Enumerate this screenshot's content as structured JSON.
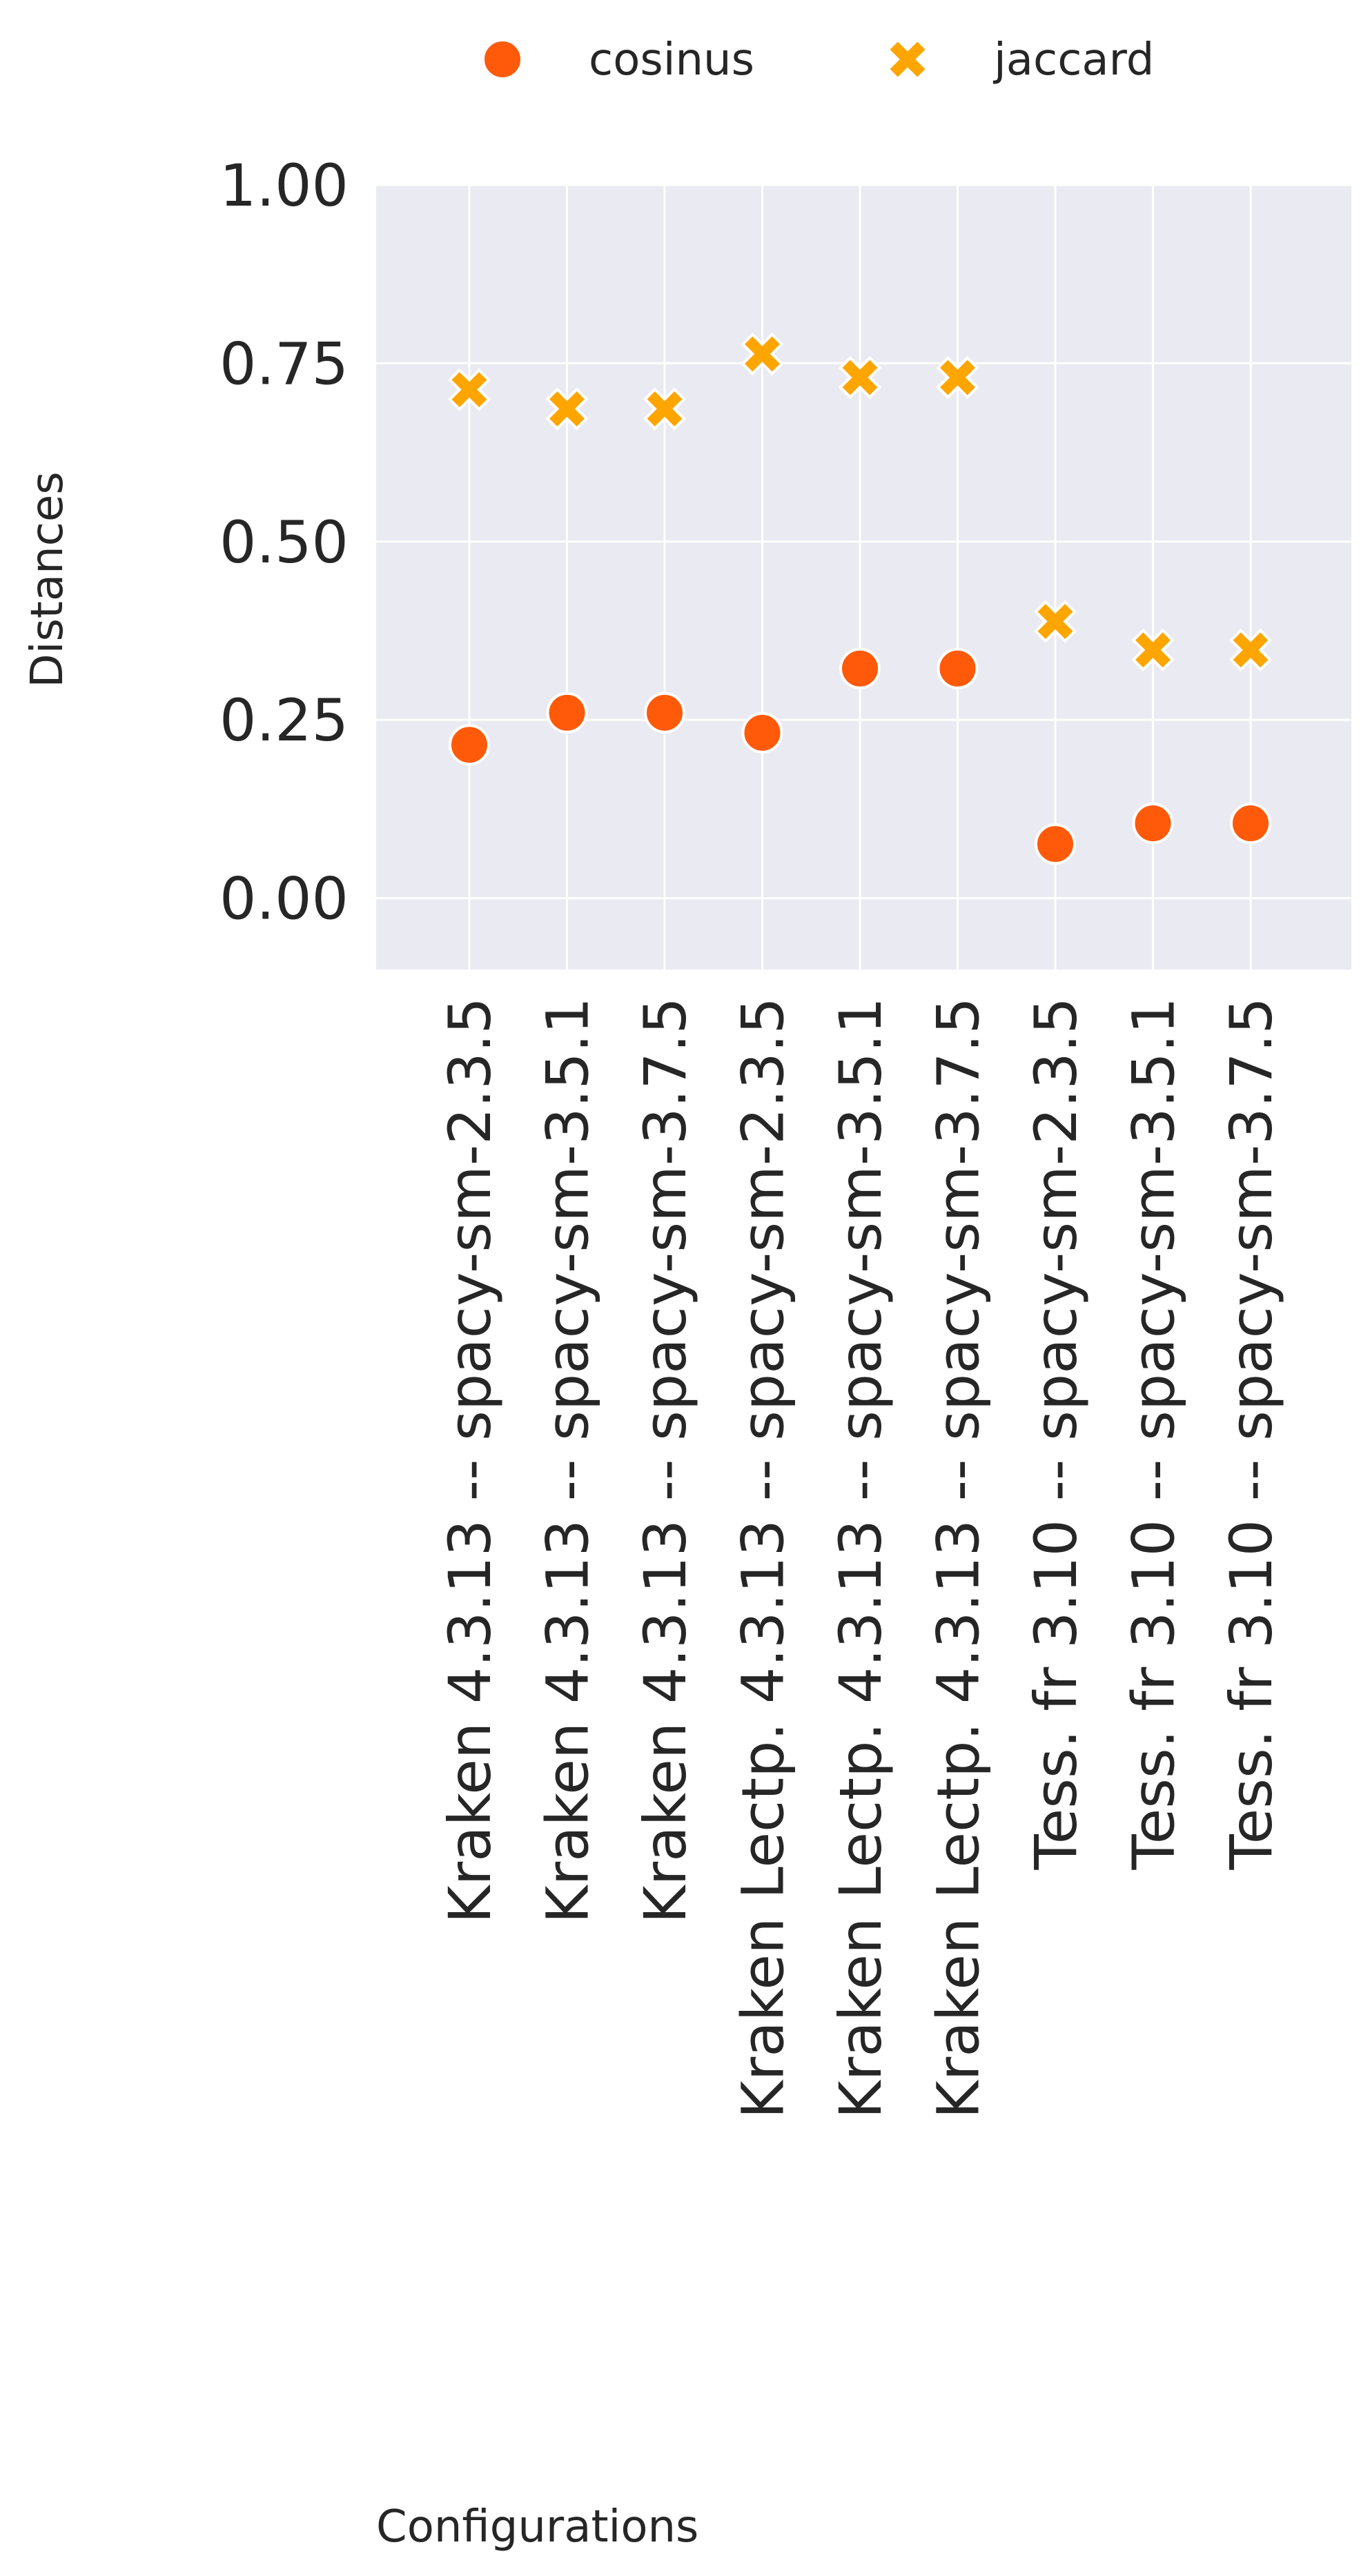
{
  "chart_data": {
    "type": "scatter",
    "title": "",
    "xlabel": "Configurations",
    "ylabel": "Distances",
    "categories": [
      "Kraken 4.3.13 -- spacy-sm-2.3.5",
      "Kraken 4.3.13 -- spacy-sm-3.5.1",
      "Kraken 4.3.13 -- spacy-sm-3.7.5",
      "Kraken Lectp. 4.3.13 -- spacy-sm-2.3.5",
      "Kraken Lectp. 4.3.13 -- spacy-sm-3.5.1",
      "Kraken Lectp. 4.3.13 -- spacy-sm-3.7.5",
      "Tess. fr 3.10 -- spacy-sm-2.3.5",
      "Tess. fr 3.10 -- spacy-sm-3.5.1",
      "Tess. fr 3.10 -- spacy-sm-3.7.5"
    ],
    "series": [
      {
        "name": "cosinus",
        "marker": "circle",
        "color": "#ff5a0a",
        "values": [
          0.215,
          0.26,
          0.26,
          0.232,
          0.322,
          0.322,
          0.076,
          0.105,
          0.105
        ]
      },
      {
        "name": "jaccard",
        "marker": "x",
        "color": "#ffa500",
        "values": [
          0.713,
          0.686,
          0.686,
          0.763,
          0.73,
          0.73,
          0.388,
          0.348,
          0.348
        ]
      }
    ],
    "ylim": [
      -0.1,
      1.0
    ],
    "yticks": [
      0.0,
      0.25,
      0.5,
      0.75,
      1.0
    ],
    "ytick_labels": [
      "0.00",
      "0.25",
      "0.50",
      "0.75",
      "1.00"
    ],
    "grid": true,
    "legend_position": "top-center",
    "background_color": "#eaeaf2",
    "grid_color": "#ffffff"
  }
}
